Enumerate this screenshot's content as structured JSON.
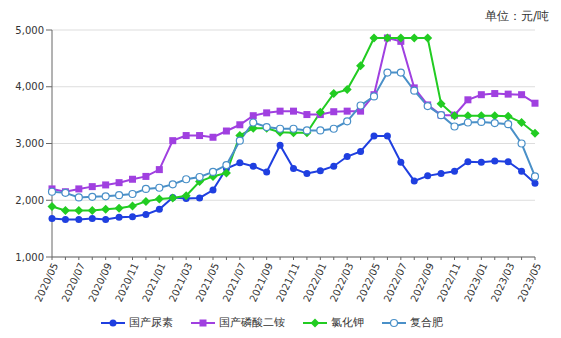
{
  "chart_data": {
    "type": "line",
    "y_label": "单位：元/吨",
    "categories": [
      "2020/05",
      null,
      "2020/07",
      null,
      "2020/09",
      null,
      "2020/11",
      null,
      "2021/01",
      null,
      "2021/03",
      null,
      "2021/05",
      null,
      "2021/07",
      null,
      "2021/09",
      null,
      "2021/11",
      null,
      "2022/01",
      null,
      "2022/03",
      null,
      "2022/05",
      null,
      "2022/07",
      null,
      "2022/09",
      null,
      "2022/11",
      null,
      "2023/01",
      null,
      "2023/03",
      null,
      "2023/05"
    ],
    "series": [
      {
        "name": "国产尿素",
        "color": "#1f3fe0",
        "marker": "circle",
        "values": [
          1680,
          1660,
          1660,
          1680,
          1660,
          1700,
          1710,
          1750,
          1840,
          2050,
          2030,
          2040,
          2180,
          2560,
          2660,
          2600,
          2500,
          2970,
          2560,
          2470,
          2520,
          2600,
          2770,
          2860,
          3130,
          3130,
          2670,
          2340,
          2430,
          2470,
          2510,
          2680,
          2670,
          2690,
          2680,
          2510,
          2300
        ]
      },
      {
        "name": "国产磷酸二铵",
        "color": "#a040e0",
        "marker": "square",
        "values": [
          2200,
          2150,
          2200,
          2240,
          2270,
          2310,
          2370,
          2420,
          2540,
          3050,
          3140,
          3140,
          3110,
          3220,
          3330,
          3490,
          3540,
          3570,
          3570,
          3510,
          3510,
          3560,
          3570,
          3570,
          3860,
          4860,
          4800,
          3980,
          3680,
          3500,
          3500,
          3770,
          3860,
          3880,
          3870,
          3860,
          3710
        ]
      },
      {
        "name": "氯化钾",
        "color": "#22cc22",
        "marker": "diamond",
        "values": [
          1890,
          1820,
          1820,
          1820,
          1840,
          1860,
          1900,
          1980,
          2020,
          2040,
          2080,
          2330,
          2420,
          2480,
          3140,
          3270,
          3270,
          3200,
          3190,
          3190,
          3550,
          3880,
          3950,
          4370,
          4860,
          4860,
          4860,
          4860,
          4860,
          3700,
          3490,
          3490,
          3490,
          3490,
          3480,
          3370,
          3180
        ]
      },
      {
        "name": "复合肥",
        "color": "#4a90c8",
        "marker": "circle-open",
        "values": [
          2150,
          2130,
          2050,
          2060,
          2070,
          2090,
          2110,
          2200,
          2220,
          2280,
          2370,
          2410,
          2500,
          2620,
          3050,
          3370,
          3290,
          3260,
          3260,
          3230,
          3230,
          3260,
          3390,
          3670,
          3830,
          4250,
          4250,
          3930,
          3660,
          3500,
          3300,
          3370,
          3380,
          3360,
          3340,
          3000,
          2420
        ]
      }
    ],
    "ylim": [
      1000,
      5000
    ],
    "yticks": [
      {
        "value": 1000,
        "label": "1,000"
      },
      {
        "value": 2000,
        "label": "2,000"
      },
      {
        "value": 3000,
        "label": "3,000"
      },
      {
        "value": 4000,
        "label": "4,000"
      },
      {
        "value": 5000,
        "label": "5,000"
      }
    ],
    "grid": true,
    "legend": "bottom"
  }
}
